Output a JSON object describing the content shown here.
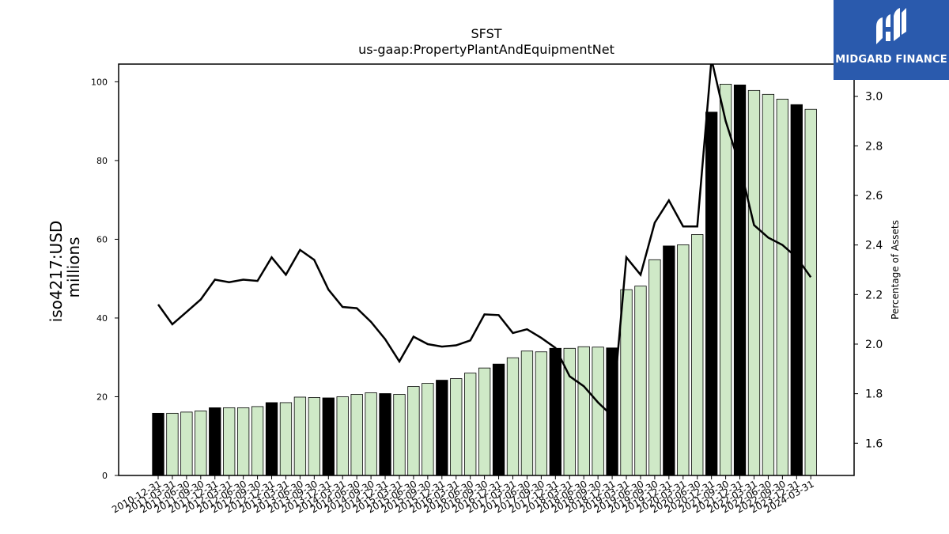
{
  "logo": {
    "text": "MIDGARD FINANCE"
  },
  "chart_data": {
    "type": "bar",
    "title": "SFST",
    "subtitle": "us-gaap:PropertyPlantAndEquipmentNet",
    "ylabel_left": "iso4217:USD\nmillions",
    "ylabel_right": "Percentage of Assets",
    "ylim": [
      0,
      104.5
    ],
    "ylim_right": [
      1.47,
      3.13
    ],
    "yticks_left": [
      0,
      20,
      40,
      60,
      80,
      100
    ],
    "yticks_right": [
      1.6,
      1.8,
      2.0,
      2.2,
      2.4,
      2.6,
      2.8,
      3.0
    ],
    "colors": {
      "annual_bar": "#000000",
      "quarter_bar": "#cfe9c7",
      "bar_edge": "#000000",
      "line": "#000000"
    },
    "categories": [
      "2010-12-31",
      "2011-03-31",
      "2011-06-30",
      "2011-09-30",
      "2011-12-31",
      "2012-03-31",
      "2012-06-30",
      "2012-09-30",
      "2012-12-31",
      "2013-03-31",
      "2013-06-30",
      "2013-09-30",
      "2013-12-31",
      "2014-03-31",
      "2014-06-30",
      "2014-09-30",
      "2014-12-31",
      "2015-03-31",
      "2015-06-30",
      "2015-09-30",
      "2015-12-31",
      "2016-03-31",
      "2016-06-30",
      "2016-09-30",
      "2016-12-31",
      "2017-03-31",
      "2017-06-30",
      "2017-09-30",
      "2017-12-31",
      "2018-03-31",
      "2018-06-30",
      "2018-09-30",
      "2018-12-31",
      "2019-03-31",
      "2019-06-30",
      "2019-09-30",
      "2019-12-31",
      "2020-03-31",
      "2020-06-30",
      "2020-12-31",
      "2021-09-30",
      "2021-12-31",
      "2022-03-31",
      "2022-06-30",
      "2022-09-30",
      "2023-12-31",
      "2024-03-31"
    ],
    "series": [
      {
        "kind": "bar",
        "values": [
          15.8,
          15.8,
          16.1,
          16.4,
          17.2,
          17.2,
          17.2,
          17.5,
          18.5,
          18.5,
          19.9,
          19.8,
          19.7,
          20.0,
          20.6,
          21.0,
          20.8,
          20.6,
          22.6,
          23.4,
          24.2,
          24.6,
          26.0,
          27.3,
          28.3,
          29.9,
          31.6,
          31.4,
          32.3,
          32.3,
          32.7,
          32.6,
          32.4,
          47.2,
          48.1,
          54.8,
          58.3,
          58.6,
          61.2,
          92.3,
          99.4,
          99.2,
          97.8,
          96.8,
          95.6,
          94.2,
          93.0
        ],
        "annual": [
          true,
          false,
          false,
          false,
          true,
          false,
          false,
          false,
          true,
          false,
          false,
          false,
          true,
          false,
          false,
          false,
          true,
          false,
          false,
          false,
          true,
          false,
          false,
          false,
          true,
          false,
          false,
          false,
          true,
          false,
          false,
          false,
          true,
          false,
          false,
          false,
          true,
          false,
          false,
          true,
          false,
          true,
          false,
          false,
          false,
          true,
          false
        ]
      },
      {
        "kind": "line",
        "axis": "right",
        "values": [
          2.16,
          2.08,
          2.13,
          2.18,
          2.26,
          2.25,
          2.26,
          2.255,
          2.35,
          2.28,
          2.38,
          2.34,
          2.22,
          2.15,
          2.145,
          2.09,
          2.02,
          1.93,
          2.03,
          2.0,
          1.99,
          1.995,
          2.015,
          2.12,
          2.117,
          2.045,
          2.06,
          2.025,
          1.985,
          1.87,
          1.83,
          1.765,
          1.71,
          2.35,
          2.28,
          2.49,
          2.58,
          2.475,
          2.475,
          3.15,
          2.9,
          2.72,
          2.48,
          2.43,
          2.4,
          2.35,
          2.27
        ]
      }
    ]
  }
}
